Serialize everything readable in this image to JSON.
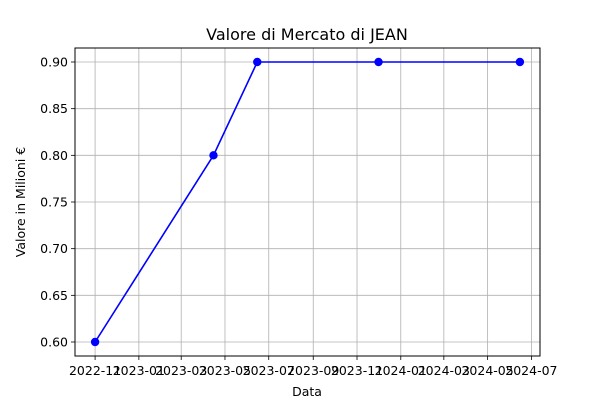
{
  "chart_data": {
    "type": "line",
    "title": "Valore di Mercato di JEAN",
    "xlabel": "Data",
    "ylabel": "Valore in Milioni €",
    "x": [
      "2022-11-01",
      "2023-04-15",
      "2023-06-15",
      "2023-12-01",
      "2024-06-15"
    ],
    "series": [
      {
        "values": [
          0.6,
          0.8,
          0.9,
          0.9,
          0.9
        ],
        "color": "#0000ff",
        "marker": "circle"
      }
    ],
    "x_ticks": [
      {
        "date": "2022-11-01",
        "label": "2022-11"
      },
      {
        "date": "2023-01-01",
        "label": "2023-01"
      },
      {
        "date": "2023-03-01",
        "label": "2023-03"
      },
      {
        "date": "2023-05-01",
        "label": "2023-05"
      },
      {
        "date": "2023-07-01",
        "label": "2023-07"
      },
      {
        "date": "2023-09-01",
        "label": "2023-09"
      },
      {
        "date": "2023-11-01",
        "label": "2023-11"
      },
      {
        "date": "2024-01-01",
        "label": "2024-01"
      },
      {
        "date": "2024-03-01",
        "label": "2024-03"
      },
      {
        "date": "2024-05-01",
        "label": "2024-05"
      },
      {
        "date": "2024-07-01",
        "label": "2024-07"
      }
    ],
    "y_ticks": [
      {
        "value": 0.6,
        "label": "0.60"
      },
      {
        "value": 0.65,
        "label": "0.65"
      },
      {
        "value": 0.7,
        "label": "0.70"
      },
      {
        "value": 0.75,
        "label": "0.75"
      },
      {
        "value": 0.8,
        "label": "0.80"
      },
      {
        "value": 0.85,
        "label": "0.85"
      },
      {
        "value": 0.9,
        "label": "0.90"
      }
    ],
    "xlim": [
      "2022-10-04",
      "2024-07-13"
    ],
    "ylim": [
      0.585,
      0.915
    ],
    "grid": true
  }
}
